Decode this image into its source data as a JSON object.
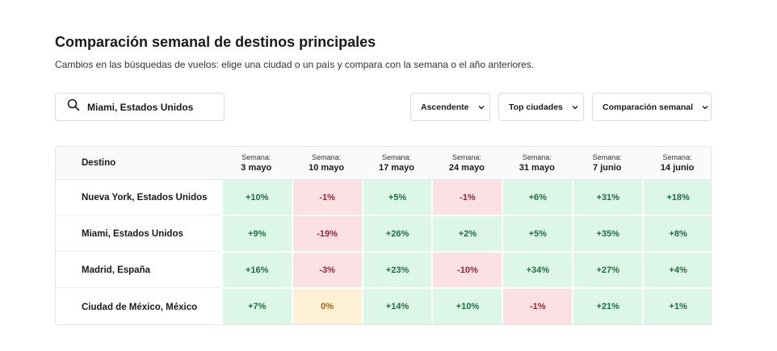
{
  "header": {
    "title": "Comparación semanal de destinos principales",
    "subtitle": "Cambios en las búsquedas de vuelos: elige una ciudad o un país y compara con la semana o el año anteriores."
  },
  "search": {
    "value": "Miami, Estados Unidos",
    "icon": "search-icon"
  },
  "filters": {
    "sort": "Ascendente",
    "scope": "Top ciudades",
    "comparison": "Comparación semanal"
  },
  "colors": {
    "positive_bg": "#dcf7e8",
    "positive_text": "#1f6b41",
    "negative_bg": "#fbe1e4",
    "negative_text": "#9b2232",
    "neutral_bg": "#fdf0d5",
    "neutral_text": "#a0631b"
  },
  "table": {
    "dest_header": "Destino",
    "columns": [
      {
        "week": "Semana:",
        "date": "3 mayo"
      },
      {
        "week": "Semana:",
        "date": "10 mayo"
      },
      {
        "week": "Semana:",
        "date": "17 mayo"
      },
      {
        "week": "Semana:",
        "date": "24 mayo"
      },
      {
        "week": "Semana:",
        "date": "31 mayo"
      },
      {
        "week": "Semana:",
        "date": "7 junio"
      },
      {
        "week": "Semana:",
        "date": "14 junio"
      }
    ],
    "rows": [
      {
        "destination": "Nueva York, Estados Unidos",
        "values": [
          "+10%",
          "-1%",
          "+5%",
          "-1%",
          "+6%",
          "+31%",
          "+18%"
        ]
      },
      {
        "destination": "Miami, Estados Unidos",
        "values": [
          "+9%",
          "-19%",
          "+26%",
          "+2%",
          "+5%",
          "+35%",
          "+8%"
        ]
      },
      {
        "destination": "Madrid, España",
        "values": [
          "+16%",
          "-3%",
          "+23%",
          "-10%",
          "+34%",
          "+27%",
          "+4%"
        ]
      },
      {
        "destination": "Ciudad de México, México",
        "values": [
          "+7%",
          "0%",
          "+14%",
          "+10%",
          "-1%",
          "+21%",
          "+1%"
        ]
      }
    ]
  }
}
